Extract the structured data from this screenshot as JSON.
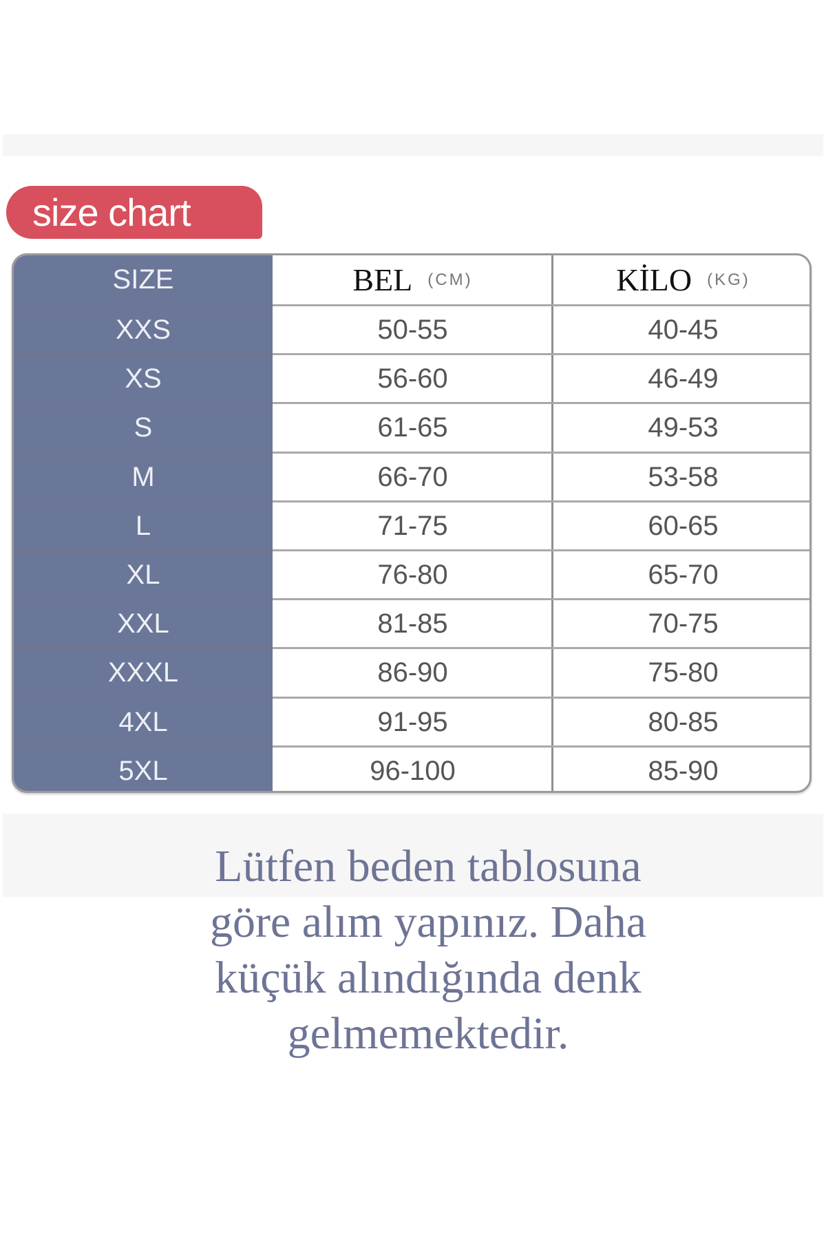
{
  "badge": "size chart",
  "headers": {
    "size": "SIZE",
    "bel": "BEL",
    "bel_unit": "(CM)",
    "kilo": "KİLO",
    "kilo_unit": "(KG)"
  },
  "rows": [
    {
      "size": "XXS",
      "bel": "50-55",
      "kilo": "40-45"
    },
    {
      "size": "XS",
      "bel": "56-60",
      "kilo": "46-49"
    },
    {
      "size": "S",
      "bel": "61-65",
      "kilo": "49-53"
    },
    {
      "size": "M",
      "bel": "66-70",
      "kilo": "53-58"
    },
    {
      "size": "L",
      "bel": "71-75",
      "kilo": "60-65"
    },
    {
      "size": "XL",
      "bel": "76-80",
      "kilo": "65-70"
    },
    {
      "size": "XXL",
      "bel": "81-85",
      "kilo": "70-75"
    },
    {
      "size": "XXXL",
      "bel": "86-90",
      "kilo": "75-80"
    },
    {
      "size": "4XL",
      "bel": "91-95",
      "kilo": "80-85"
    },
    {
      "size": "5XL",
      "bel": "96-100",
      "kilo": "85-90"
    }
  ],
  "note_lines": [
    "Lütfen beden tablosuna",
    "göre alım yapınız. Daha",
    "küçük alındığında denk",
    "gelmemektedir."
  ],
  "colors": {
    "badge": "#d8505d",
    "size_column": "#6b7799",
    "note_text": "#6d7495"
  }
}
